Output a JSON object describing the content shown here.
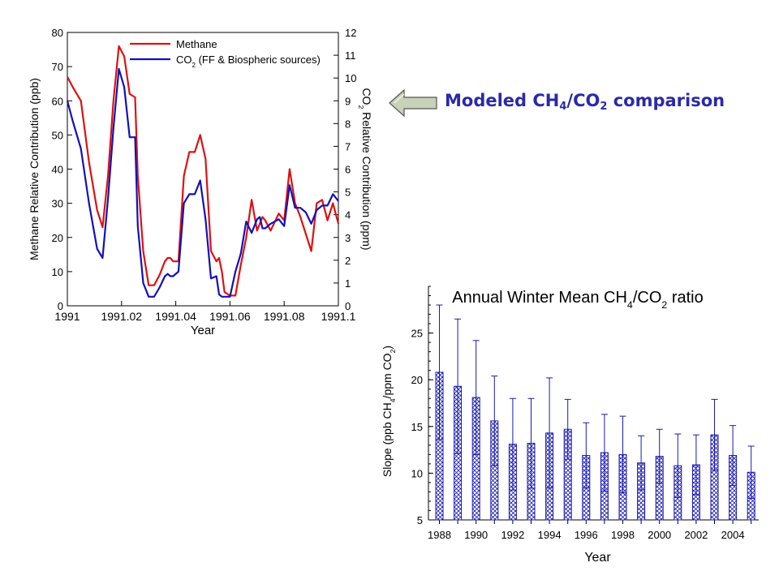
{
  "slide": {
    "banner": {
      "prefix": "Modeled CH",
      "sub1": "4",
      "mid": "/CO",
      "sub2": "2",
      "suffix": " comparison",
      "color": "#2a2aa8"
    },
    "arrow_color": "#c7d2b8"
  },
  "chart_data": [
    {
      "type": "line",
      "title": "",
      "xlabel": "Year",
      "ylabel": "Methane Relative Contribution (ppb)",
      "y2label": "CO2 Relative Contribution (ppm)",
      "xlim": [
        1991.0,
        1991.1
      ],
      "ylim": [
        0,
        80
      ],
      "y2lim": [
        0,
        12
      ],
      "x_ticks": [
        1991.0,
        1991.02,
        1991.04,
        1991.06,
        1991.08,
        1991.1
      ],
      "x_tick_labels": [
        "1991",
        "1991.02",
        "1991.04",
        "1991.06",
        "1991.08",
        "1991.1"
      ],
      "y_ticks": [
        0,
        10,
        20,
        30,
        40,
        50,
        60,
        70,
        80
      ],
      "y2_ticks": [
        0,
        1,
        2,
        3,
        4,
        5,
        6,
        7,
        8,
        9,
        10,
        11,
        12
      ],
      "legend_position": "top-right",
      "series": [
        {
          "name": "Methane",
          "color": "#dd1111",
          "axis": "left",
          "x": [
            1991.0,
            1991.002,
            1991.005,
            1991.008,
            1991.011,
            1991.013,
            1991.015,
            1991.017,
            1991.019,
            1991.021,
            1991.023,
            1991.025,
            1991.026,
            1991.028,
            1991.03,
            1991.032,
            1991.034,
            1991.036,
            1991.037,
            1991.038,
            1991.039,
            1991.041,
            1991.043,
            1991.045,
            1991.047,
            1991.049,
            1991.051,
            1991.053,
            1991.055,
            1991.056,
            1991.057,
            1991.058,
            1991.06,
            1991.062,
            1991.064,
            1991.066,
            1991.068,
            1991.07,
            1991.071,
            1991.072,
            1991.073,
            1991.075,
            1991.078,
            1991.08,
            1991.082,
            1991.084,
            1991.086,
            1991.088,
            1991.09,
            1991.092,
            1991.094,
            1991.096,
            1991.098,
            1991.1
          ],
          "values": [
            67,
            64,
            60,
            42,
            28,
            23,
            38,
            60,
            76,
            73,
            62,
            61,
            38,
            16,
            6,
            6,
            9,
            13,
            14,
            14,
            13,
            13,
            38,
            45,
            45,
            50,
            43,
            16,
            13,
            14,
            10,
            4,
            3,
            3,
            12,
            20,
            31,
            22,
            24,
            26,
            25,
            22,
            27,
            25,
            40,
            30,
            26,
            21,
            16,
            30,
            31,
            25,
            30,
            24
          ]
        },
        {
          "name": "CO2 (FF & Biospheric sources)",
          "color": "#1111bb",
          "axis": "right",
          "x": [
            1991.0,
            1991.002,
            1991.005,
            1991.008,
            1991.011,
            1991.013,
            1991.015,
            1991.017,
            1991.019,
            1991.021,
            1991.023,
            1991.025,
            1991.026,
            1991.028,
            1991.03,
            1991.032,
            1991.034,
            1991.036,
            1991.037,
            1991.038,
            1991.039,
            1991.041,
            1991.043,
            1991.045,
            1991.047,
            1991.049,
            1991.051,
            1991.053,
            1991.055,
            1991.056,
            1991.057,
            1991.058,
            1991.06,
            1991.062,
            1991.064,
            1991.066,
            1991.068,
            1991.07,
            1991.071,
            1991.072,
            1991.073,
            1991.075,
            1991.078,
            1991.08,
            1991.082,
            1991.084,
            1991.086,
            1991.088,
            1991.09,
            1991.092,
            1991.094,
            1991.096,
            1991.098,
            1991.1
          ],
          "values": [
            9.0,
            8.1,
            6.9,
            4.5,
            2.5,
            2.1,
            4.7,
            7.8,
            10.4,
            9.6,
            7.4,
            7.4,
            3.5,
            1.0,
            0.4,
            0.4,
            0.8,
            1.3,
            1.4,
            1.3,
            1.3,
            1.5,
            4.5,
            4.9,
            4.9,
            5.5,
            3.8,
            1.2,
            1.3,
            0.5,
            0.4,
            0.4,
            0.4,
            1.5,
            2.3,
            3.7,
            3.2,
            3.8,
            3.9,
            3.4,
            3.4,
            3.6,
            3.8,
            3.5,
            5.3,
            4.3,
            4.3,
            4.1,
            3.6,
            4.2,
            4.4,
            4.4,
            4.9,
            4.6
          ]
        }
      ]
    },
    {
      "type": "bar",
      "title": "Annual Winter Mean CH4/CO2 ratio",
      "xlabel": "Year",
      "ylabel": "Slope (ppb CH4/ppm CO2)",
      "ylim": [
        5,
        30
      ],
      "y_ticks": [
        5,
        10,
        15,
        20,
        25
      ],
      "x_tick_labels": [
        "1988",
        "1990",
        "1992",
        "1994",
        "1996",
        "1998",
        "2000",
        "2002",
        "2004"
      ],
      "categories": [
        1988,
        1989,
        1990,
        1991,
        1992,
        1993,
        1994,
        1995,
        1996,
        1997,
        1998,
        1999,
        2000,
        2001,
        2002,
        2003,
        2004,
        2005
      ],
      "values": [
        20.8,
        19.3,
        18.1,
        15.6,
        13.1,
        13.2,
        14.3,
        14.7,
        11.9,
        12.2,
        12.0,
        11.1,
        11.8,
        10.8,
        10.9,
        14.1,
        11.9,
        10.1
      ],
      "errors": [
        7.2,
        7.2,
        6.1,
        4.8,
        4.9,
        4.8,
        5.9,
        3.2,
        3.5,
        4.1,
        4.1,
        2.9,
        2.9,
        3.4,
        3.2,
        3.8,
        3.2,
        2.8
      ],
      "bar_fill": "crosshatch",
      "bar_color": "#1a1ab0"
    }
  ]
}
